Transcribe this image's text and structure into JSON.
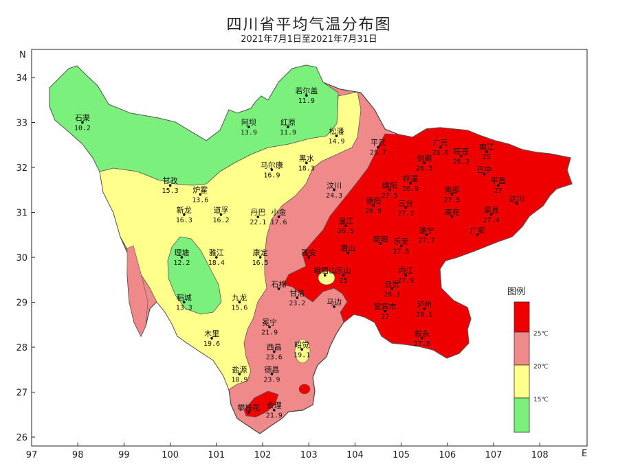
{
  "title": "四川省平均气温分布图",
  "subtitle": "2021年7月1日至2021年7月31日",
  "axes": {
    "x_ticks": [
      "97",
      "98",
      "99",
      "100",
      "101",
      "102",
      "103",
      "104",
      "105",
      "106",
      "107",
      "108"
    ],
    "y_ticks": [
      "34",
      "33",
      "32",
      "31",
      "30",
      "29",
      "28",
      "27",
      "26"
    ],
    "x_dir": "E",
    "y_dir": "N"
  },
  "legend": {
    "title": "图例",
    "labels": [
      "25℃",
      "20℃",
      "15℃"
    ],
    "colors": {
      "green": "#7cf07c",
      "yellow": "#ffff8c",
      "pink": "#f08a8a",
      "red": "#ee0000"
    }
  },
  "stations": [
    {
      "name": "石渠",
      "value": "10.2",
      "lon": 98.1,
      "lat": 33.0
    },
    {
      "name": "若尔盖",
      "value": "11.9",
      "lon": 102.95,
      "lat": 33.6
    },
    {
      "name": "阿坝",
      "value": "13.9",
      "lon": 101.7,
      "lat": 32.9
    },
    {
      "name": "红原",
      "value": "11.9",
      "lon": 102.55,
      "lat": 32.9
    },
    {
      "name": "松潘",
      "value": "14.9",
      "lon": 103.6,
      "lat": 32.7
    },
    {
      "name": "黑水",
      "value": "18.3",
      "lon": 102.95,
      "lat": 32.1
    },
    {
      "name": "马尔康",
      "value": "16.9",
      "lon": 102.2,
      "lat": 31.95
    },
    {
      "name": "甘孜",
      "value": "15.3",
      "lon": 100.0,
      "lat": 31.6
    },
    {
      "name": "炉霍",
      "value": "13.6",
      "lon": 100.65,
      "lat": 31.4
    },
    {
      "name": "新龙",
      "value": "16.3",
      "lon": 100.3,
      "lat": 30.95
    },
    {
      "name": "道孚",
      "value": "16.2",
      "lon": 101.1,
      "lat": 30.95
    },
    {
      "name": "丹巴",
      "value": "22.1",
      "lon": 101.9,
      "lat": 30.9
    },
    {
      "name": "小金",
      "value": "17.6",
      "lon": 102.35,
      "lat": 30.9
    },
    {
      "name": "汶川",
      "value": "24.3",
      "lon": 103.55,
      "lat": 31.5
    },
    {
      "name": "理塘",
      "value": "12.2",
      "lon": 100.25,
      "lat": 30.0
    },
    {
      "name": "雅江",
      "value": "18.4",
      "lon": 101.0,
      "lat": 30.0
    },
    {
      "name": "康定",
      "value": "16.5",
      "lon": 101.95,
      "lat": 30.0
    },
    {
      "name": "稻城",
      "value": "13.3",
      "lon": 100.3,
      "lat": 29.0
    },
    {
      "name": "九龙",
      "value": "15.6",
      "lon": 101.5,
      "lat": 29.0
    },
    {
      "name": "木里",
      "value": "19.6",
      "lon": 100.9,
      "lat": 28.2
    },
    {
      "name": "盐源",
      "value": "18.9",
      "lon": 101.5,
      "lat": 27.4
    },
    {
      "name": "冕宁",
      "value": "21.9",
      "lon": 102.15,
      "lat": 28.45
    },
    {
      "name": "西昌",
      "value": "23.6",
      "lon": 102.25,
      "lat": 27.9
    },
    {
      "name": "德昌",
      "value": "23.9",
      "lon": 102.2,
      "lat": 27.4
    },
    {
      "name": "会理",
      "value": "21.9",
      "lon": 102.25,
      "lat": 26.6
    },
    {
      "name": "攀枝花",
      "value": "",
      "lon": 101.7,
      "lat": 26.55
    },
    {
      "name": "昭觉",
      "value": "19.1",
      "lon": 102.85,
      "lat": 27.95
    },
    {
      "name": "石棉",
      "value": "",
      "lon": 102.35,
      "lat": 29.3
    },
    {
      "name": "甘洛",
      "value": "23.2",
      "lon": 102.75,
      "lat": 29.1
    },
    {
      "name": "雅安",
      "value": "",
      "lon": 103.0,
      "lat": 30.0
    },
    {
      "name": "峨眉山",
      "value": "",
      "lon": 103.35,
      "lat": 29.6
    },
    {
      "name": "乐山",
      "value": "25",
      "lon": 103.75,
      "lat": 29.6
    },
    {
      "name": "眉山",
      "value": "",
      "lon": 103.85,
      "lat": 30.1
    },
    {
      "name": "马边",
      "value": "",
      "lon": 103.55,
      "lat": 28.9
    },
    {
      "name": "平武",
      "value": "25.7",
      "lon": 104.5,
      "lat": 32.45
    },
    {
      "name": "广元",
      "value": "26.6",
      "lon": 105.85,
      "lat": 32.45
    },
    {
      "name": "旺苍",
      "value": "26.3",
      "lon": 106.3,
      "lat": 32.25
    },
    {
      "name": "南江",
      "value": "25",
      "lon": 106.85,
      "lat": 32.35
    },
    {
      "name": "剑阁",
      "value": "26.3",
      "lon": 105.5,
      "lat": 32.1
    },
    {
      "name": "巴中",
      "value": "",
      "lon": 106.8,
      "lat": 31.85
    },
    {
      "name": "平昌",
      "value": "27",
      "lon": 107.1,
      "lat": 31.6
    },
    {
      "name": "绵阳",
      "value": "27.5",
      "lon": 104.75,
      "lat": 31.5
    },
    {
      "name": "梓潼",
      "value": "26.9",
      "lon": 105.2,
      "lat": 31.65
    },
    {
      "name": "南部",
      "value": "27.5",
      "lon": 106.1,
      "lat": 31.4
    },
    {
      "name": "达川",
      "value": "",
      "lon": 107.5,
      "lat": 31.2
    },
    {
      "name": "德阳",
      "value": "26.9",
      "lon": 104.4,
      "lat": 31.15
    },
    {
      "name": "三台",
      "value": "27.2",
      "lon": 105.1,
      "lat": 31.1
    },
    {
      "name": "南充",
      "value": "",
      "lon": 106.1,
      "lat": 30.9
    },
    {
      "name": "渠县",
      "value": "27.4",
      "lon": 106.95,
      "lat": 30.95
    },
    {
      "name": "温江",
      "value": "26.5",
      "lon": 103.8,
      "lat": 30.7
    },
    {
      "name": "遂宁",
      "value": "27.7",
      "lon": 105.55,
      "lat": 30.5
    },
    {
      "name": "广安",
      "value": "",
      "lon": 106.65,
      "lat": 30.5
    },
    {
      "name": "简阳",
      "value": "",
      "lon": 104.55,
      "lat": 30.3
    },
    {
      "name": "乐至",
      "value": "27.5",
      "lon": 105.0,
      "lat": 30.25
    },
    {
      "name": "内江",
      "value": "27.9",
      "lon": 105.1,
      "lat": 29.6
    },
    {
      "name": "自贡",
      "value": "28.3",
      "lon": 104.8,
      "lat": 29.3
    },
    {
      "name": "宜宾市",
      "value": "27",
      "lon": 104.65,
      "lat": 28.8
    },
    {
      "name": "泸州",
      "value": "28.1",
      "lon": 105.5,
      "lat": 28.85
    },
    {
      "name": "叙永",
      "value": "27.8",
      "lon": 105.45,
      "lat": 28.2
    }
  ]
}
